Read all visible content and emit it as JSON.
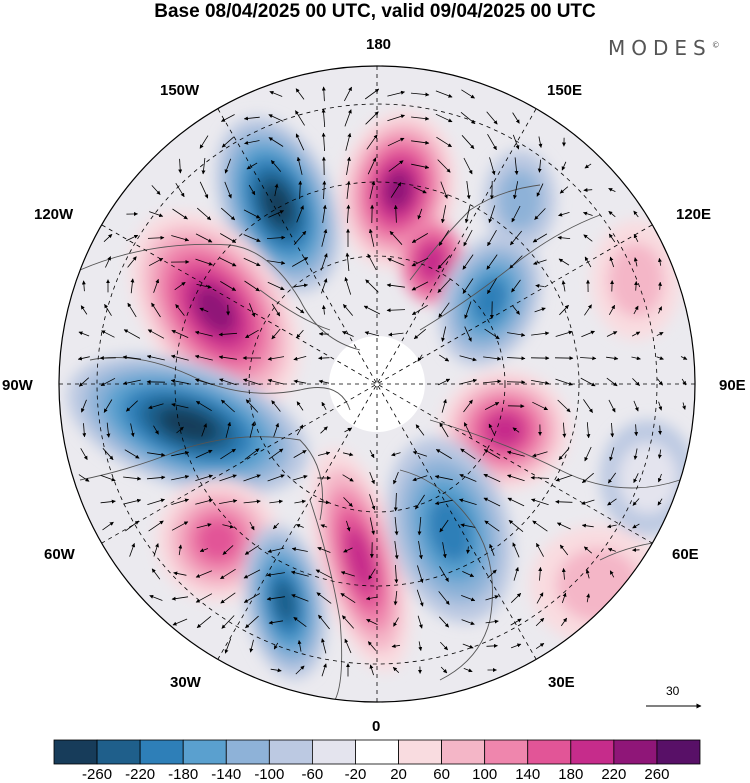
{
  "header": {
    "title": "Base 08/04/2025 00 UTC, valid 09/04/2025 00 UTC",
    "brand": "MODES",
    "brand_mark": "©"
  },
  "map": {
    "projection": "north polar stereographic",
    "longitude_labels": {
      "lon_0": "0",
      "lon_30e": "30E",
      "lon_60e": "60E",
      "lon_90e": "90E",
      "lon_120e": "120E",
      "lon_150e": "150E",
      "lon_180": "180",
      "lon_150w": "150W",
      "lon_120w": "120W",
      "lon_90w": "90W",
      "lon_60w": "60W",
      "lon_30w": "30W"
    },
    "reference_vector": {
      "value": "30"
    }
  },
  "colorbar": {
    "colors": [
      "#173c5a",
      "#1f5f8b",
      "#2e7fb8",
      "#5aa0cf",
      "#8eb2d8",
      "#bcc9e2",
      "#e4e4ee",
      "#ffffff",
      "#f9dce0",
      "#f4b6c7",
      "#ef86ad",
      "#e25597",
      "#c62c8b",
      "#8f1678",
      "#581067"
    ],
    "labels": [
      "-260",
      "-220",
      "-180",
      "-140",
      "-100",
      "-60",
      "-20",
      "20",
      "60",
      "100",
      "140",
      "180",
      "220",
      "260"
    ]
  }
}
